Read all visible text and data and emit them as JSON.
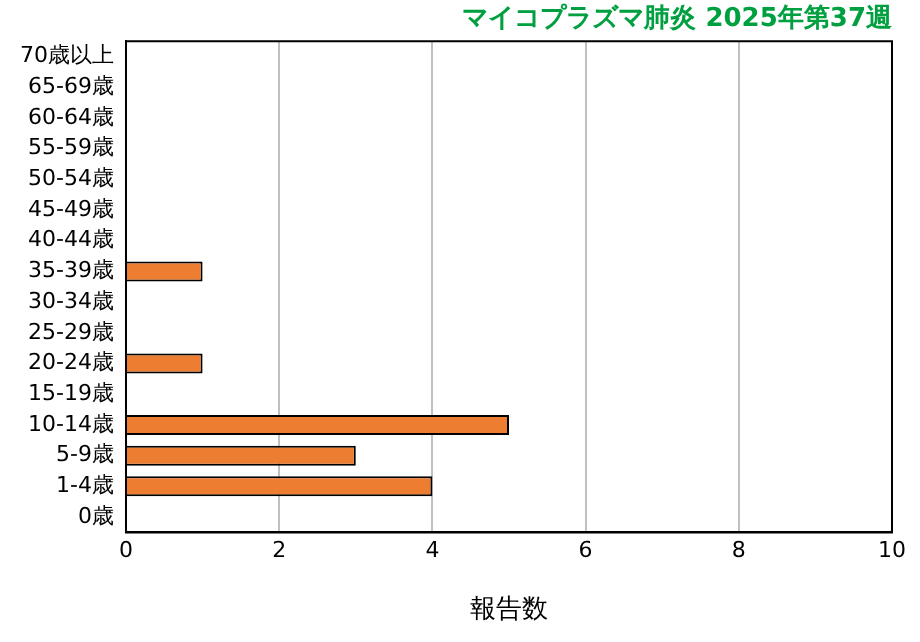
{
  "chart_data": {
    "type": "bar",
    "orientation": "horizontal",
    "title": "マイコプラズマ肺炎 2025年第37週",
    "xlabel": "報告数",
    "categories": [
      "70歳以上",
      "65-69歳",
      "60-64歳",
      "55-59歳",
      "50-54歳",
      "45-49歳",
      "40-44歳",
      "35-39歳",
      "30-34歳",
      "25-29歳",
      "20-24歳",
      "15-19歳",
      "10-14歳",
      "5-9歳",
      "1-4歳",
      "0歳"
    ],
    "values": [
      0,
      0,
      0,
      0,
      0,
      0,
      0,
      1,
      0,
      0,
      1,
      0,
      5,
      3,
      4,
      0
    ],
    "color": "#ed7d31",
    "xlim": [
      0,
      10
    ],
    "xticks": [
      0,
      2,
      4,
      6,
      8,
      10
    ],
    "grid": "x",
    "legend": false
  }
}
